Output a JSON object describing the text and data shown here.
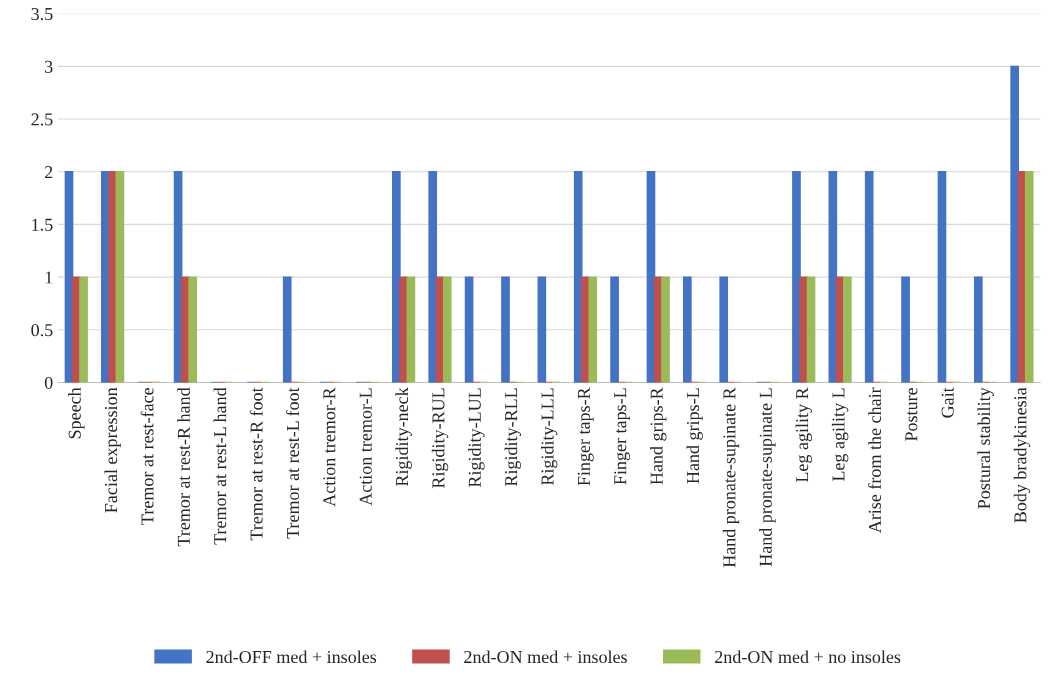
{
  "chart_data": {
    "type": "bar",
    "categories": [
      "Speech",
      "Facial expression",
      "Tremor at rest-face",
      "Tremor at rest-R hand",
      "Tremor at rest-L hand",
      "Tremor at rest-R foot",
      "Tremor at rest-L foot",
      "Action tremor-R",
      "Action tremor-L",
      "Rigidity-neck",
      "Rigidity-RUL",
      "Rigidity-LUL",
      "Rigidity-RLL",
      "Rigidity-LLL",
      "Finger taps-R",
      "Finger taps-L",
      "Hand grips-R",
      "Hand grips-L",
      "Hand pronate-supinate R",
      "Hand pronate-supinate L",
      "Leg agility R",
      "Leg agility L",
      "Arise from the chair",
      "Posture",
      "Gait",
      "Postural stability",
      "Body bradykinesia"
    ],
    "series": [
      {
        "name": "2nd-OFF med + insoles",
        "color": "#4472c4",
        "values": [
          2,
          2,
          0,
          2,
          0,
          0,
          1,
          0,
          0,
          2,
          2,
          1,
          1,
          1,
          2,
          1,
          2,
          1,
          1,
          0,
          2,
          2,
          2,
          1,
          2,
          1,
          3
        ]
      },
      {
        "name": "2nd-ON med + insoles",
        "color": "#c0504d",
        "values": [
          1,
          2,
          0,
          1,
          0,
          0,
          0,
          0,
          0,
          1,
          1,
          0,
          0,
          0,
          1,
          0,
          1,
          0,
          0,
          0,
          1,
          1,
          0,
          0,
          0,
          0,
          2
        ]
      },
      {
        "name": "2nd-ON med + no insoles",
        "color": "#9bbb59",
        "values": [
          1,
          2,
          0,
          1,
          0,
          0,
          0,
          0,
          0,
          1,
          1,
          0,
          0,
          0,
          1,
          0,
          1,
          0,
          0,
          0,
          1,
          1,
          0,
          0,
          0,
          0,
          2
        ]
      }
    ],
    "ylim": [
      0,
      3.5
    ],
    "yticks": [
      0,
      0.5,
      1,
      1.5,
      2,
      2.5,
      3,
      3.5
    ],
    "grid": "y",
    "legend": "bottom"
  }
}
